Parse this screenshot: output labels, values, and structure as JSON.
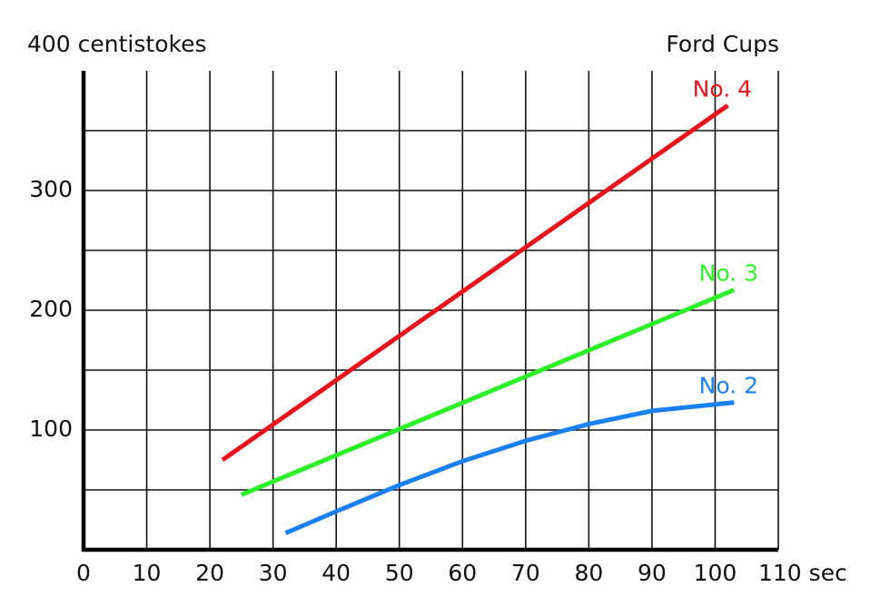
{
  "chart_data": {
    "type": "line",
    "title": "Ford Cups",
    "xlim": [
      0,
      110
    ],
    "xticks": [
      0,
      10,
      20,
      30,
      40,
      50,
      60,
      70,
      80,
      90,
      100,
      {
        "value": 110,
        "label": "110 sec"
      }
    ],
    "ylim": [
      0,
      400
    ],
    "yticks": [
      100,
      200,
      300,
      {
        "value": 400,
        "label": "400 centistokes"
      }
    ],
    "ygrid": [
      50,
      100,
      150,
      200,
      250,
      300,
      350
    ],
    "grid": true,
    "series": [
      {
        "name": "No. 4",
        "color": "#e8141b",
        "x": [
          22,
          102
        ],
        "values": [
          75,
          371
        ]
      },
      {
        "name": "No. 3",
        "color": "#2ef02a",
        "x": [
          25,
          103
        ],
        "values": [
          46,
          217
        ]
      },
      {
        "name": "No. 2",
        "color": "#1a7fef",
        "x": [
          32,
          40,
          50,
          60,
          70,
          80,
          90,
          103
        ],
        "values": [
          14,
          32,
          54,
          74,
          91,
          105,
          116,
          123
        ]
      }
    ]
  }
}
